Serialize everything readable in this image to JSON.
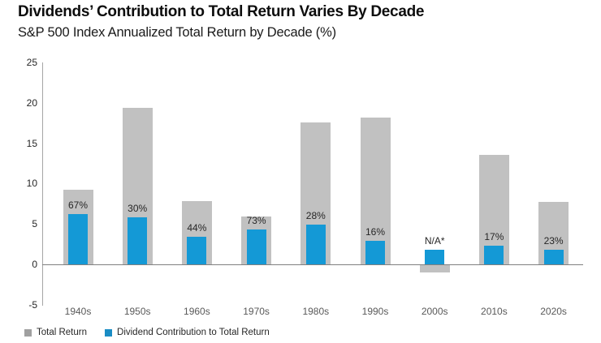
{
  "header": {
    "title": "Dividends’ Contribution to Total Return Varies By Decade",
    "subtitle": "S&P 500 Index Annualized Total Return by Decade (%)"
  },
  "colors": {
    "total_return_bar": "#c1c1c1",
    "dividend_bar": "#1499d6",
    "legend_total_return": "#a0a0a0",
    "legend_dividend": "#1a8cc4",
    "axis_line": "#a6a6a6",
    "zero_line": "#808080"
  },
  "legend": {
    "items": [
      {
        "label": "Total Return",
        "color": "#a0a0a0"
      },
      {
        "label": "Dividend Contribution to Total Return",
        "color": "#1a8cc4"
      }
    ]
  },
  "chart_data": {
    "type": "bar",
    "title": "Dividends’ Contribution to Total Return Varies By Decade",
    "subtitle": "S&P 500 Index Annualized Total Return by Decade (%)",
    "categories": [
      "1940s",
      "1950s",
      "1960s",
      "1970s",
      "1980s",
      "1990s",
      "2000s",
      "2010s",
      "2020s"
    ],
    "series": [
      {
        "name": "Total Return",
        "values": [
          9.2,
          19.4,
          7.8,
          5.9,
          17.6,
          18.2,
          -0.9,
          13.6,
          7.7
        ]
      },
      {
        "name": "Dividend Contribution to Total Return",
        "values": [
          6.2,
          5.8,
          3.4,
          4.3,
          4.9,
          2.9,
          1.8,
          2.3,
          1.8
        ]
      }
    ],
    "bar_labels": [
      "67%",
      "30%",
      "44%",
      "73%",
      "28%",
      "16%",
      "N/A*",
      "17%",
      "23%"
    ],
    "xlabel": "",
    "ylabel": "",
    "ylim": [
      -5,
      25
    ],
    "yticks": [
      25,
      20,
      15,
      10,
      5,
      0,
      -5
    ],
    "grid": false,
    "legend_position": "bottom-left"
  }
}
